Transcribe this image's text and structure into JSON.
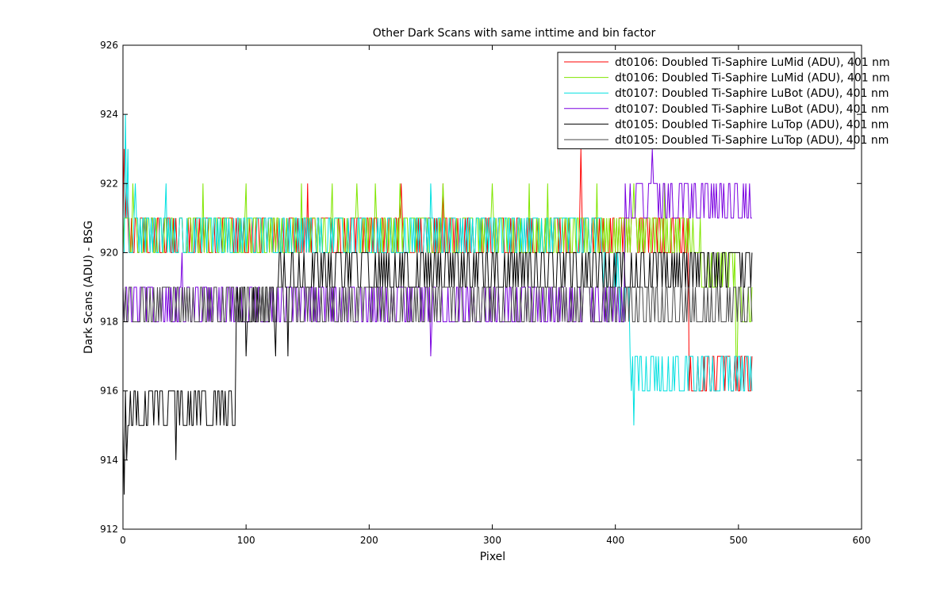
{
  "chart_data": {
    "type": "line",
    "title": "Other Dark Scans with same inttime and bin factor",
    "xlabel": "Pixel",
    "ylabel": "Dark Scans (ADU) - BSG",
    "xlim": [
      0,
      600
    ],
    "ylim": [
      912,
      926
    ],
    "x_ticks": [
      0,
      100,
      200,
      300,
      400,
      500,
      600
    ],
    "y_ticks": [
      912,
      914,
      916,
      918,
      920,
      922,
      924,
      926
    ],
    "x_tick_labels": [
      "0",
      "100",
      "200",
      "300",
      "400",
      "500",
      "600"
    ],
    "y_tick_labels": [
      "912",
      "914",
      "916",
      "918",
      "920",
      "922",
      "924",
      "926"
    ],
    "grid": false,
    "legend_position": "top-right",
    "n_points": 512,
    "series": [
      {
        "name": "dt0106: Doubled Ti-Saphire LuMid (ADU), 401 nm",
        "color": "#ff0000",
        "segments": [
          [
            0,
            117,
            920,
            921
          ],
          [
            117,
            360,
            920,
            921
          ],
          [
            360,
            460,
            920,
            921
          ],
          [
            460,
            512,
            916,
            917
          ]
        ],
        "spikes": [
          [
            1,
            923
          ],
          [
            3,
            922
          ],
          [
            7,
            921
          ],
          [
            226,
            922
          ],
          [
            372,
            923
          ],
          [
            150,
            922
          ],
          [
            260,
            922
          ]
        ]
      },
      {
        "name": "dt0106: Doubled Ti-Saphire LuMid (ADU), 401 nm",
        "color": "#80e600",
        "segments": [
          [
            0,
            470,
            920,
            921
          ],
          [
            470,
            498,
            919,
            920
          ],
          [
            498,
            512,
            917,
            919
          ]
        ],
        "spikes": [
          [
            8,
            922
          ],
          [
            65,
            922
          ],
          [
            100,
            922
          ],
          [
            145,
            922
          ],
          [
            170,
            922
          ],
          [
            190,
            922
          ],
          [
            205,
            922
          ],
          [
            225,
            922
          ],
          [
            260,
            922
          ],
          [
            300,
            922
          ],
          [
            330,
            922
          ],
          [
            345,
            922
          ],
          [
            385,
            922
          ],
          [
            415,
            922
          ],
          [
            440,
            922
          ]
        ]
      },
      {
        "name": "dt0107: Doubled Ti-Saphire LuBot (ADU), 401 nm",
        "color": "#00e0e0",
        "segments": [
          [
            0,
            390,
            920,
            921
          ],
          [
            390,
            412,
            918,
            920
          ],
          [
            412,
            512,
            916,
            917
          ]
        ],
        "spikes": [
          [
            2,
            924
          ],
          [
            4,
            923
          ],
          [
            10,
            922
          ],
          [
            35,
            922
          ],
          [
            250,
            922
          ],
          [
            415,
            915
          ]
        ]
      },
      {
        "name": "dt0107: Doubled Ti-Saphire LuBot (ADU), 401 nm",
        "color": "#7a00e0",
        "segments": [
          [
            0,
            408,
            918,
            919
          ],
          [
            408,
            512,
            921,
            922
          ]
        ],
        "spikes": [
          [
            48,
            920
          ],
          [
            250,
            917
          ],
          [
            430,
            923
          ]
        ]
      },
      {
        "name": "dt0105: Doubled Ti-Saphire LuTop (ADU), 401 nm",
        "color": "#000000",
        "segments": [
          [
            0,
            4,
            914,
            917
          ],
          [
            4,
            92,
            915,
            916
          ],
          [
            92,
            126,
            917,
            919
          ],
          [
            126,
            512,
            919,
            920
          ]
        ],
        "spikes": [
          [
            1,
            913
          ],
          [
            43,
            914
          ],
          [
            134,
            917
          ]
        ]
      },
      {
        "name": "dt0105: Doubled Ti-Saphire LuTop (ADU), 401 nm",
        "color": "#4a4a4a",
        "segments": [
          [
            0,
            490,
            918,
            919
          ],
          [
            490,
            512,
            918,
            919
          ]
        ],
        "spikes": []
      }
    ]
  }
}
